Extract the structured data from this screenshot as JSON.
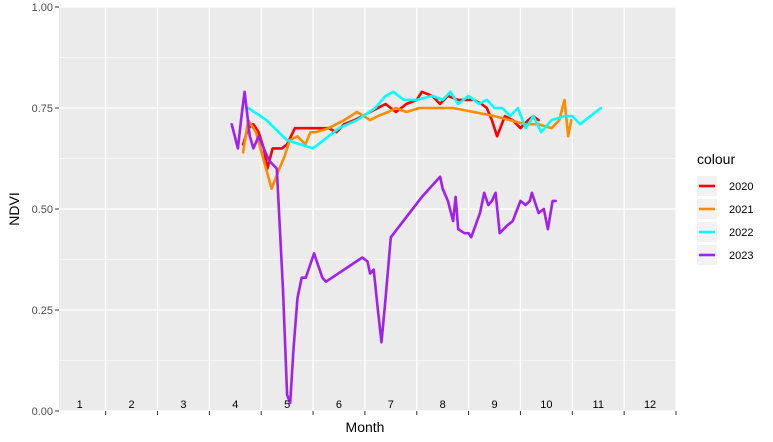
{
  "chart_data": {
    "type": "line",
    "xlabel": "Month",
    "ylabel": "NDVI",
    "ylim": [
      0,
      1
    ],
    "xlim": [
      0.6,
      12.5
    ],
    "yticks": [
      "0.00",
      "0.25",
      "0.50",
      "0.75",
      "1.00"
    ],
    "month_labels": [
      "1",
      "2",
      "3",
      "4",
      "5",
      "6",
      "7",
      "8",
      "9",
      "10",
      "11",
      "12"
    ],
    "grid": true,
    "legend": {
      "title": "colour",
      "position": "right"
    },
    "series": [
      {
        "name": "2020",
        "color": "#ff0000",
        "x": [
          4.15,
          4.25,
          4.35,
          4.45,
          4.55,
          4.62,
          4.72,
          4.9,
          5.0,
          5.15,
          5.35,
          5.6,
          5.8,
          5.95,
          6.1,
          6.3,
          6.6,
          6.9,
          7.1,
          7.3,
          7.5,
          7.6,
          7.8,
          7.95,
          8.1,
          8.3,
          8.6,
          8.75,
          8.85,
          8.95,
          9.05,
          9.2,
          9.35,
          9.5,
          9.65,
          9.75,
          9.85
        ],
        "y": [
          0.66,
          0.7,
          0.71,
          0.69,
          0.65,
          0.6,
          0.65,
          0.65,
          0.66,
          0.7,
          0.7,
          0.7,
          0.7,
          0.69,
          0.71,
          0.72,
          0.74,
          0.76,
          0.74,
          0.76,
          0.77,
          0.79,
          0.78,
          0.76,
          0.78,
          0.77,
          0.77,
          0.76,
          0.75,
          0.72,
          0.68,
          0.73,
          0.72,
          0.7,
          0.72,
          0.73,
          0.72
        ]
      },
      {
        "name": "2021",
        "color": "#ff8c00",
        "x": [
          4.15,
          4.25,
          4.4,
          4.55,
          4.7,
          4.85,
          4.95,
          5.05,
          5.2,
          5.35,
          5.45,
          5.55,
          5.8,
          6.1,
          6.35,
          6.6,
          6.75,
          6.95,
          7.1,
          7.3,
          7.55,
          7.8,
          8.2,
          8.6,
          9.0,
          9.3,
          9.6,
          9.85,
          10.1,
          10.25,
          10.35,
          10.42,
          10.48
        ],
        "y": [
          0.64,
          0.72,
          0.69,
          0.62,
          0.55,
          0.6,
          0.63,
          0.67,
          0.68,
          0.66,
          0.69,
          0.69,
          0.7,
          0.72,
          0.74,
          0.72,
          0.73,
          0.74,
          0.75,
          0.74,
          0.75,
          0.75,
          0.75,
          0.74,
          0.73,
          0.72,
          0.71,
          0.71,
          0.7,
          0.72,
          0.77,
          0.68,
          0.72
        ]
      },
      {
        "name": "2022",
        "color": "#00ffff",
        "x": [
          4.25,
          4.6,
          5.0,
          5.5,
          6.0,
          6.35,
          6.7,
          6.9,
          7.05,
          7.25,
          7.5,
          7.8,
          8.0,
          8.15,
          8.3,
          8.5,
          8.7,
          8.85,
          9.0,
          9.15,
          9.3,
          9.45,
          9.6,
          9.75,
          9.9,
          10.1,
          10.35,
          10.5,
          10.65,
          11.05
        ],
        "y": [
          0.75,
          0.72,
          0.67,
          0.65,
          0.7,
          0.72,
          0.75,
          0.78,
          0.79,
          0.77,
          0.77,
          0.78,
          0.77,
          0.79,
          0.76,
          0.78,
          0.76,
          0.77,
          0.75,
          0.75,
          0.73,
          0.75,
          0.7,
          0.73,
          0.69,
          0.72,
          0.73,
          0.73,
          0.71,
          0.75
        ]
      },
      {
        "name": "2023",
        "color": "#a020f0",
        "x": [
          3.93,
          4.05,
          4.12,
          4.18,
          4.28,
          4.35,
          4.45,
          4.55,
          4.65,
          4.8,
          4.92,
          5.0,
          5.06,
          5.12,
          5.2,
          5.28,
          5.36,
          5.44,
          5.52,
          5.6,
          5.68,
          5.75,
          6.45,
          6.55,
          6.6,
          6.67,
          6.75,
          6.82,
          6.9,
          7.0,
          7.6,
          7.95,
          8.0,
          8.1,
          8.2,
          8.25,
          8.3,
          8.42,
          8.5,
          8.55,
          8.72,
          8.8,
          8.88,
          8.95,
          9.02,
          9.1,
          9.25,
          9.35,
          9.5,
          9.6,
          9.68,
          9.72,
          9.85,
          9.95,
          10.03,
          10.12,
          10.18
        ],
        "y": [
          0.71,
          0.65,
          0.73,
          0.79,
          0.68,
          0.65,
          0.68,
          0.65,
          0.62,
          0.6,
          0.3,
          0.04,
          0.02,
          0.15,
          0.28,
          0.33,
          0.33,
          0.36,
          0.39,
          0.36,
          0.33,
          0.32,
          0.38,
          0.37,
          0.34,
          0.35,
          0.25,
          0.17,
          0.28,
          0.43,
          0.53,
          0.58,
          0.55,
          0.52,
          0.47,
          0.53,
          0.45,
          0.44,
          0.44,
          0.43,
          0.49,
          0.54,
          0.51,
          0.52,
          0.54,
          0.44,
          0.46,
          0.47,
          0.52,
          0.51,
          0.52,
          0.54,
          0.49,
          0.5,
          0.45,
          0.52,
          0.52
        ]
      }
    ]
  }
}
